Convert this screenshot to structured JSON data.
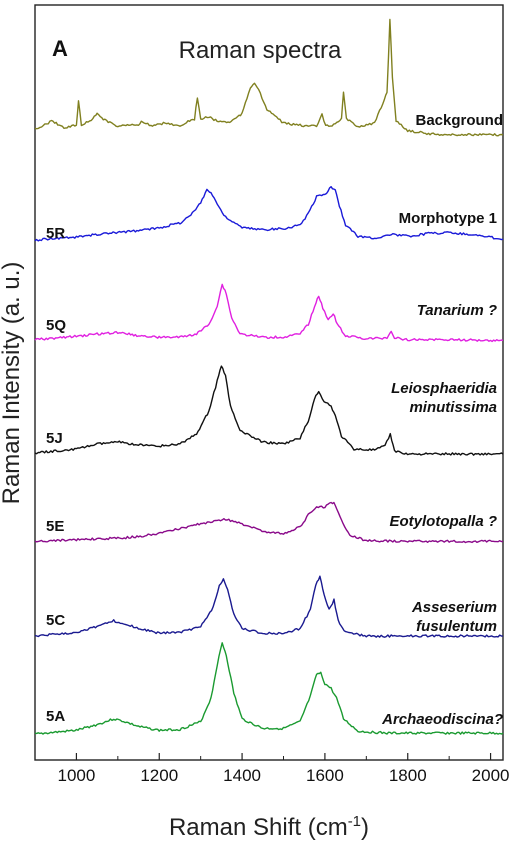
{
  "panel_letter": "A",
  "chart_data": {
    "type": "line",
    "title": "Raman spectra",
    "xlabel": "Raman Shift (cm",
    "xlabel_sup": "-1",
    "xlabel_close": ")",
    "ylabel": "Raman Intensity (a. u.)",
    "xlim": [
      900,
      2030
    ],
    "x_ticks": [
      1000,
      1200,
      1400,
      1600,
      1800,
      2000
    ],
    "x_tick_labels": [
      "1000",
      "1200",
      "1400",
      "1600",
      "1800",
      "2000"
    ],
    "y_ticks_shown": false,
    "grid": false,
    "legend": "inline labels right of each trace",
    "stacked_offset": true,
    "series": [
      {
        "name": "Background",
        "sample": "",
        "italic": false,
        "color": "#808020",
        "baseline": 0.0,
        "points": [
          [
            900,
            0.1
          ],
          [
            940,
            0.18
          ],
          [
            970,
            0.12
          ],
          [
            1000,
            0.14
          ],
          [
            1005,
            0.38
          ],
          [
            1012,
            0.14
          ],
          [
            1040,
            0.2
          ],
          [
            1050,
            0.26
          ],
          [
            1065,
            0.2
          ],
          [
            1100,
            0.13
          ],
          [
            1150,
            0.15
          ],
          [
            1160,
            0.18
          ],
          [
            1180,
            0.13
          ],
          [
            1210,
            0.16
          ],
          [
            1250,
            0.14
          ],
          [
            1285,
            0.2
          ],
          [
            1292,
            0.4
          ],
          [
            1300,
            0.2
          ],
          [
            1320,
            0.22
          ],
          [
            1340,
            0.18
          ],
          [
            1370,
            0.17
          ],
          [
            1400,
            0.25
          ],
          [
            1420,
            0.5
          ],
          [
            1430,
            0.55
          ],
          [
            1440,
            0.48
          ],
          [
            1460,
            0.28
          ],
          [
            1475,
            0.25
          ],
          [
            1500,
            0.16
          ],
          [
            1540,
            0.14
          ],
          [
            1580,
            0.13
          ],
          [
            1593,
            0.24
          ],
          [
            1602,
            0.13
          ],
          [
            1625,
            0.15
          ],
          [
            1640,
            0.2
          ],
          [
            1645,
            0.45
          ],
          [
            1652,
            0.2
          ],
          [
            1680,
            0.13
          ],
          [
            1720,
            0.16
          ],
          [
            1740,
            0.35
          ],
          [
            1750,
            0.45
          ],
          [
            1757,
            1.15
          ],
          [
            1763,
            0.6
          ],
          [
            1772,
            0.18
          ],
          [
            1800,
            0.09
          ],
          [
            1850,
            0.06
          ],
          [
            1900,
            0.05
          ],
          [
            1950,
            0.05
          ],
          [
            2030,
            0.05
          ]
        ]
      },
      {
        "name": "Morphotype 1",
        "sample": "5R",
        "italic": false,
        "color": "#1a1ad8",
        "baseline": 0.0,
        "points": [
          [
            900,
            0.02
          ],
          [
            950,
            0.04
          ],
          [
            1000,
            0.05
          ],
          [
            1050,
            0.08
          ],
          [
            1100,
            0.1
          ],
          [
            1150,
            0.12
          ],
          [
            1200,
            0.15
          ],
          [
            1250,
            0.2
          ],
          [
            1280,
            0.3
          ],
          [
            1300,
            0.42
          ],
          [
            1315,
            0.55
          ],
          [
            1325,
            0.52
          ],
          [
            1340,
            0.4
          ],
          [
            1360,
            0.26
          ],
          [
            1400,
            0.15
          ],
          [
            1450,
            0.13
          ],
          [
            1500,
            0.14
          ],
          [
            1540,
            0.18
          ],
          [
            1560,
            0.3
          ],
          [
            1580,
            0.48
          ],
          [
            1600,
            0.5
          ],
          [
            1615,
            0.58
          ],
          [
            1625,
            0.55
          ],
          [
            1635,
            0.38
          ],
          [
            1650,
            0.18
          ],
          [
            1680,
            0.06
          ],
          [
            1720,
            0.04
          ],
          [
            1760,
            0.08
          ],
          [
            1800,
            0.06
          ],
          [
            1850,
            0.09
          ],
          [
            1900,
            0.1
          ],
          [
            1950,
            0.08
          ],
          [
            2000,
            0.05
          ],
          [
            2030,
            0.03
          ]
        ]
      },
      {
        "name": "Tanarium ?",
        "sample": "5Q",
        "italic": true,
        "color": "#e020e0",
        "baseline": 0.0,
        "points": [
          [
            900,
            0.03
          ],
          [
            950,
            0.05
          ],
          [
            1000,
            0.07
          ],
          [
            1050,
            0.1
          ],
          [
            1100,
            0.12
          ],
          [
            1150,
            0.08
          ],
          [
            1200,
            0.06
          ],
          [
            1250,
            0.06
          ],
          [
            1290,
            0.1
          ],
          [
            1320,
            0.22
          ],
          [
            1340,
            0.45
          ],
          [
            1352,
            0.72
          ],
          [
            1362,
            0.6
          ],
          [
            1375,
            0.3
          ],
          [
            1395,
            0.1
          ],
          [
            1450,
            0.06
          ],
          [
            1500,
            0.06
          ],
          [
            1540,
            0.1
          ],
          [
            1560,
            0.22
          ],
          [
            1575,
            0.45
          ],
          [
            1585,
            0.58
          ],
          [
            1595,
            0.42
          ],
          [
            1608,
            0.28
          ],
          [
            1620,
            0.36
          ],
          [
            1630,
            0.22
          ],
          [
            1650,
            0.08
          ],
          [
            1700,
            0.04
          ],
          [
            1750,
            0.05
          ],
          [
            1760,
            0.14
          ],
          [
            1768,
            0.05
          ],
          [
            1800,
            0.03
          ],
          [
            1900,
            0.03
          ],
          [
            2000,
            0.02
          ],
          [
            2030,
            0.02
          ]
        ]
      },
      {
        "name": "Leiosphaeridia",
        "name_line2": "minutissima",
        "sample": "5J",
        "italic": true,
        "color": "#111111",
        "baseline": 0.0,
        "points": [
          [
            900,
            0.03
          ],
          [
            950,
            0.05
          ],
          [
            1000,
            0.07
          ],
          [
            1050,
            0.12
          ],
          [
            1100,
            0.14
          ],
          [
            1150,
            0.11
          ],
          [
            1200,
            0.1
          ],
          [
            1250,
            0.12
          ],
          [
            1290,
            0.22
          ],
          [
            1320,
            0.45
          ],
          [
            1340,
            0.75
          ],
          [
            1350,
            0.9
          ],
          [
            1360,
            0.8
          ],
          [
            1372,
            0.5
          ],
          [
            1395,
            0.25
          ],
          [
            1420,
            0.2
          ],
          [
            1450,
            0.14
          ],
          [
            1500,
            0.12
          ],
          [
            1540,
            0.18
          ],
          [
            1560,
            0.35
          ],
          [
            1575,
            0.58
          ],
          [
            1585,
            0.64
          ],
          [
            1598,
            0.55
          ],
          [
            1615,
            0.5
          ],
          [
            1625,
            0.4
          ],
          [
            1640,
            0.2
          ],
          [
            1670,
            0.07
          ],
          [
            1720,
            0.06
          ],
          [
            1745,
            0.1
          ],
          [
            1758,
            0.22
          ],
          [
            1768,
            0.05
          ],
          [
            1800,
            0.02
          ],
          [
            1900,
            0.02
          ],
          [
            2030,
            0.02
          ]
        ]
      },
      {
        "name": "Eotylotopalla ?",
        "sample": "5E",
        "italic": true,
        "color": "#8a0a8a",
        "baseline": 0.0,
        "points": [
          [
            900,
            0.02
          ],
          [
            950,
            0.03
          ],
          [
            1000,
            0.04
          ],
          [
            1050,
            0.05
          ],
          [
            1100,
            0.06
          ],
          [
            1150,
            0.08
          ],
          [
            1200,
            0.12
          ],
          [
            1250,
            0.18
          ],
          [
            1300,
            0.24
          ],
          [
            1340,
            0.28
          ],
          [
            1360,
            0.3
          ],
          [
            1380,
            0.27
          ],
          [
            1420,
            0.2
          ],
          [
            1460,
            0.14
          ],
          [
            1500,
            0.12
          ],
          [
            1540,
            0.2
          ],
          [
            1560,
            0.35
          ],
          [
            1580,
            0.45
          ],
          [
            1600,
            0.45
          ],
          [
            1615,
            0.52
          ],
          [
            1625,
            0.48
          ],
          [
            1640,
            0.28
          ],
          [
            1660,
            0.1
          ],
          [
            1700,
            0.03
          ],
          [
            1800,
            0.02
          ],
          [
            1900,
            0.02
          ],
          [
            2030,
            0.02
          ]
        ]
      },
      {
        "name": "Asseserium",
        "name_line2": "fusulentum",
        "sample": "5C",
        "italic": true,
        "color": "#1a1a90",
        "baseline": 0.0,
        "points": [
          [
            900,
            0.02
          ],
          [
            950,
            0.04
          ],
          [
            1000,
            0.06
          ],
          [
            1050,
            0.12
          ],
          [
            1090,
            0.18
          ],
          [
            1110,
            0.16
          ],
          [
            1150,
            0.1
          ],
          [
            1200,
            0.05
          ],
          [
            1250,
            0.06
          ],
          [
            1300,
            0.12
          ],
          [
            1330,
            0.32
          ],
          [
            1345,
            0.55
          ],
          [
            1355,
            0.62
          ],
          [
            1365,
            0.5
          ],
          [
            1380,
            0.25
          ],
          [
            1400,
            0.1
          ],
          [
            1450,
            0.05
          ],
          [
            1500,
            0.05
          ],
          [
            1540,
            0.1
          ],
          [
            1565,
            0.3
          ],
          [
            1578,
            0.56
          ],
          [
            1588,
            0.65
          ],
          [
            1598,
            0.45
          ],
          [
            1610,
            0.3
          ],
          [
            1622,
            0.4
          ],
          [
            1632,
            0.18
          ],
          [
            1650,
            0.06
          ],
          [
            1700,
            0.02
          ],
          [
            1800,
            0.02
          ],
          [
            1900,
            0.02
          ],
          [
            2030,
            0.02
          ]
        ]
      },
      {
        "name": "Archaeodiscina?",
        "sample": "5A",
        "italic": true,
        "color": "#1a9a30",
        "baseline": 0.0,
        "points": [
          [
            900,
            0.02
          ],
          [
            950,
            0.04
          ],
          [
            1000,
            0.06
          ],
          [
            1050,
            0.12
          ],
          [
            1090,
            0.18
          ],
          [
            1110,
            0.16
          ],
          [
            1150,
            0.1
          ],
          [
            1200,
            0.06
          ],
          [
            1250,
            0.07
          ],
          [
            1300,
            0.15
          ],
          [
            1325,
            0.4
          ],
          [
            1340,
            0.75
          ],
          [
            1352,
            0.98
          ],
          [
            1362,
            0.85
          ],
          [
            1380,
            0.45
          ],
          [
            1400,
            0.18
          ],
          [
            1450,
            0.08
          ],
          [
            1500,
            0.08
          ],
          [
            1540,
            0.15
          ],
          [
            1565,
            0.42
          ],
          [
            1580,
            0.65
          ],
          [
            1590,
            0.66
          ],
          [
            1600,
            0.55
          ],
          [
            1615,
            0.5
          ],
          [
            1628,
            0.4
          ],
          [
            1645,
            0.18
          ],
          [
            1680,
            0.05
          ],
          [
            1750,
            0.03
          ],
          [
            1800,
            0.03
          ],
          [
            1900,
            0.03
          ],
          [
            2030,
            0.03
          ]
        ]
      }
    ]
  }
}
